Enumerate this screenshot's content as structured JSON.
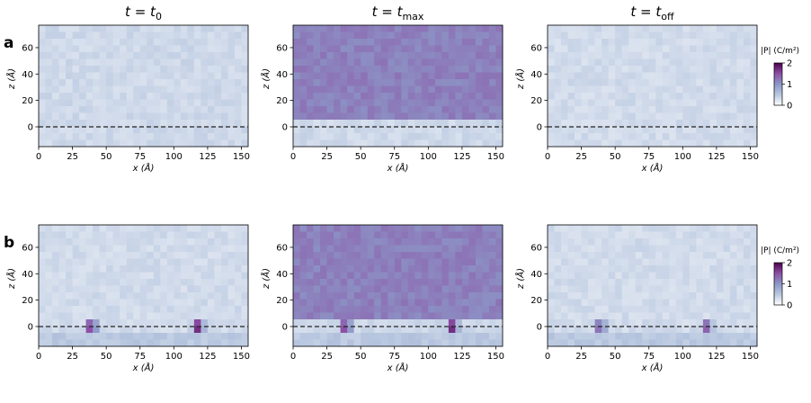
{
  "figure": {
    "row_labels": [
      "a",
      "b"
    ],
    "column_titles": [
      {
        "base": "t",
        "eq": " = ",
        "var": "t",
        "sub": "0"
      },
      {
        "base": "t",
        "eq": " = ",
        "var": "t",
        "sub": "max"
      },
      {
        "base": "t",
        "eq": " = ",
        "var": "t",
        "sub": "off"
      }
    ],
    "colorbar": {
      "label": "|P| (C/m²)",
      "ticks": [
        0,
        1,
        2
      ],
      "range": [
        0,
        2
      ],
      "colors": [
        "#ffffff",
        "#b9c8e0",
        "#8c96c6",
        "#8c4fa6",
        "#4d004b"
      ]
    }
  },
  "chart_data": [
    {
      "type": "heatmap",
      "panel": "a",
      "column": "t = t0",
      "x_values_center_A": [],
      "xlabel": "x (Å)",
      "ylabel": "z (Å)",
      "xlim": [
        0,
        155
      ],
      "ylim": [
        -15,
        77
      ],
      "xticks": [
        0,
        25,
        50,
        75,
        100,
        125,
        150
      ],
      "yticks": [
        0,
        20,
        40,
        60
      ],
      "reference_line": {
        "z": 0,
        "style": "dashed"
      },
      "field": {
        "background_magnitude": 0.35,
        "noise": 0.08,
        "domain_z_range": null,
        "hotspots": []
      }
    },
    {
      "type": "heatmap",
      "panel": "a",
      "column": "t = tmax",
      "xlabel": "x (Å)",
      "ylabel": "z (Å)",
      "xlim": [
        0,
        155
      ],
      "ylim": [
        -15,
        77
      ],
      "xticks": [
        0,
        25,
        50,
        75,
        100,
        125,
        150
      ],
      "yticks": [
        0,
        20,
        40,
        60
      ],
      "reference_line": {
        "z": 0,
        "style": "dashed"
      },
      "field": {
        "background_magnitude": 0.35,
        "noise": 0.08,
        "domain_z_range": [
          4,
          77
        ],
        "domain_magnitude": 1.15,
        "hotspots": []
      }
    },
    {
      "type": "heatmap",
      "panel": "a",
      "column": "t = toff",
      "xlabel": "x (Å)",
      "ylabel": "z (Å)",
      "xlim": [
        0,
        155
      ],
      "ylim": [
        -15,
        77
      ],
      "xticks": [
        0,
        25,
        50,
        75,
        100,
        125,
        150
      ],
      "yticks": [
        0,
        20,
        40,
        60
      ],
      "reference_line": {
        "z": 0,
        "style": "dashed"
      },
      "field": {
        "background_magnitude": 0.33,
        "noise": 0.08,
        "domain_z_range": null,
        "hotspots": []
      }
    },
    {
      "type": "heatmap",
      "panel": "b",
      "column": "t = t0",
      "xlabel": "x (Å)",
      "ylabel": "z (Å)",
      "xlim": [
        0,
        155
      ],
      "ylim": [
        -15,
        77
      ],
      "xticks": [
        0,
        25,
        50,
        75,
        100,
        125,
        150
      ],
      "yticks": [
        0,
        20,
        40,
        60
      ],
      "reference_line": {
        "z": 0,
        "style": "dashed"
      },
      "field": {
        "background_magnitude": 0.33,
        "noise": 0.08,
        "substrate_z_range": [
          -15,
          -4
        ],
        "substrate_magnitude": 0.5,
        "domain_z_range": null,
        "hotspots": [
          {
            "x": 39,
            "z": 0,
            "magnitude": 1.9
          },
          {
            "x": 118,
            "z": 0,
            "magnitude": 2.0
          }
        ]
      }
    },
    {
      "type": "heatmap",
      "panel": "b",
      "column": "t = tmax",
      "xlabel": "x (Å)",
      "ylabel": "z (Å)",
      "xlim": [
        0,
        155
      ],
      "ylim": [
        -15,
        77
      ],
      "xticks": [
        0,
        25,
        50,
        75,
        100,
        125,
        150
      ],
      "yticks": [
        0,
        20,
        40,
        60
      ],
      "reference_line": {
        "z": 0,
        "style": "dashed"
      },
      "field": {
        "background_magnitude": 0.35,
        "noise": 0.08,
        "substrate_z_range": [
          -15,
          -4
        ],
        "substrate_magnitude": 0.5,
        "domain_z_range": [
          4,
          77
        ],
        "domain_magnitude": 1.15,
        "hotspots": [
          {
            "x": 39,
            "z": 0,
            "magnitude": 1.9
          },
          {
            "x": 118,
            "z": 0,
            "magnitude": 2.0
          }
        ]
      }
    },
    {
      "type": "heatmap",
      "panel": "b",
      "column": "t = toff",
      "xlabel": "x (Å)",
      "ylabel": "z (Å)",
      "xlim": [
        0,
        155
      ],
      "ylim": [
        -15,
        77
      ],
      "xticks": [
        0,
        25,
        50,
        75,
        100,
        125,
        150
      ],
      "yticks": [
        0,
        20,
        40,
        60
      ],
      "reference_line": {
        "z": 0,
        "style": "dashed"
      },
      "field": {
        "background_magnitude": 0.33,
        "noise": 0.08,
        "substrate_z_range": [
          -15,
          -4
        ],
        "substrate_magnitude": 0.5,
        "domain_z_range": null,
        "hotspots": [
          {
            "x": 39,
            "z": 0,
            "magnitude": 1.6
          },
          {
            "x": 118,
            "z": 0,
            "magnitude": 1.6
          }
        ]
      }
    }
  ]
}
